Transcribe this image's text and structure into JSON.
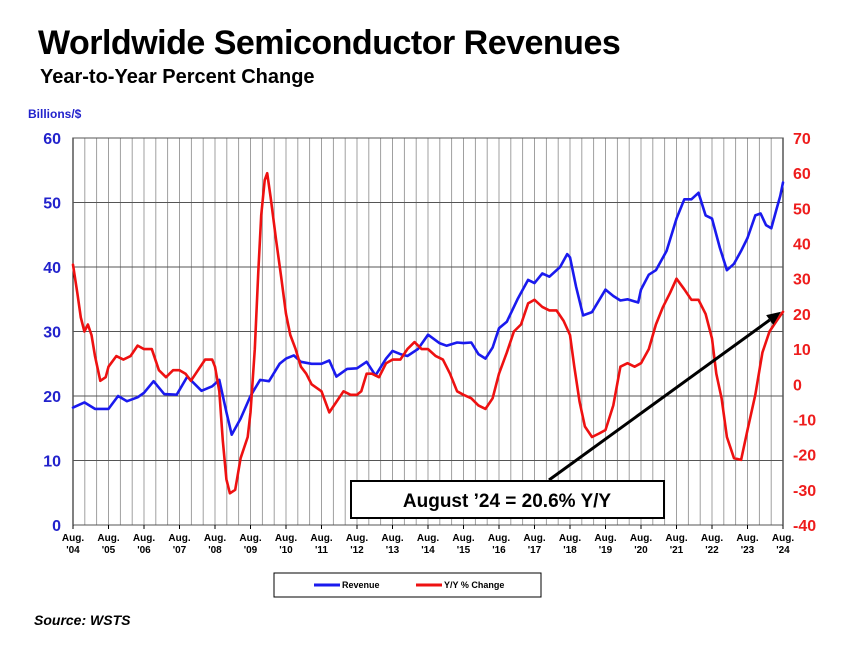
{
  "header": {
    "title": "Worldwide Semiconductor Revenues",
    "subtitle": "Year-to-Year Percent Change"
  },
  "footer": {
    "source": "Source: WSTS"
  },
  "colors": {
    "revenue": "#1a1aee",
    "yoy": "#ee1111",
    "left_axis": "#2222cc",
    "right_axis": "#ee1c1c"
  },
  "chart_data": {
    "type": "line",
    "title": "Worldwide Semiconductor Revenues",
    "subtitle": "Year-to-Year Percent Change",
    "ylabel": "Billions/$",
    "ylim": [
      0,
      60
    ],
    "y2lim": [
      -40,
      70
    ],
    "yticks": [
      0,
      10,
      20,
      30,
      40,
      50,
      60
    ],
    "y2ticks": [
      -40,
      -30,
      -20,
      -10,
      0,
      10,
      20,
      30,
      40,
      50,
      60,
      70
    ],
    "grid": true,
    "legend_position": "bottom-center",
    "categories": [
      [
        "Aug.",
        "'04"
      ],
      [
        "Aug.",
        "'05"
      ],
      [
        "Aug.",
        "'06"
      ],
      [
        "Aug.",
        "'07"
      ],
      [
        "Aug.",
        "'08"
      ],
      [
        "Aug.",
        "'09"
      ],
      [
        "Aug.",
        "'10"
      ],
      [
        "Aug.",
        "'11"
      ],
      [
        "Aug.",
        "'12"
      ],
      [
        "Aug.",
        "'13"
      ],
      [
        "Aug.",
        "'14"
      ],
      [
        "Aug.",
        "'15"
      ],
      [
        "Aug.",
        "'16"
      ],
      [
        "Aug.",
        "'17"
      ],
      [
        "Aug.",
        "'18"
      ],
      [
        "Aug.",
        "'19"
      ],
      [
        "Aug.",
        "'20"
      ],
      [
        "Aug.",
        "'21"
      ],
      [
        "Aug.",
        "'22"
      ],
      [
        "Aug.",
        "'23"
      ],
      [
        "Aug.",
        "'24"
      ]
    ],
    "series": [
      {
        "name": "Revenue",
        "axis": "left",
        "points": [
          [
            2004.58,
            18.2
          ],
          [
            2004.9,
            19.0
          ],
          [
            2005.2,
            18.0
          ],
          [
            2005.58,
            18.0
          ],
          [
            2005.85,
            20.0
          ],
          [
            2006.1,
            19.2
          ],
          [
            2006.4,
            19.8
          ],
          [
            2006.58,
            20.5
          ],
          [
            2006.85,
            22.3
          ],
          [
            2007.15,
            20.3
          ],
          [
            2007.5,
            20.2
          ],
          [
            2007.8,
            23.0
          ],
          [
            2008.2,
            20.8
          ],
          [
            2008.5,
            21.5
          ],
          [
            2008.7,
            22.5
          ],
          [
            2008.9,
            17.5
          ],
          [
            2009.05,
            14.0
          ],
          [
            2009.3,
            16.5
          ],
          [
            2009.58,
            20.0
          ],
          [
            2009.85,
            22.5
          ],
          [
            2010.1,
            22.3
          ],
          [
            2010.4,
            25.0
          ],
          [
            2010.58,
            25.8
          ],
          [
            2010.8,
            26.3
          ],
          [
            2011.0,
            25.3
          ],
          [
            2011.3,
            25.0
          ],
          [
            2011.58,
            25.0
          ],
          [
            2011.8,
            25.5
          ],
          [
            2012.0,
            23.0
          ],
          [
            2012.3,
            24.2
          ],
          [
            2012.58,
            24.3
          ],
          [
            2012.85,
            25.3
          ],
          [
            2013.1,
            23.2
          ],
          [
            2013.4,
            25.8
          ],
          [
            2013.58,
            27.0
          ],
          [
            2013.8,
            26.5
          ],
          [
            2014.0,
            26.2
          ],
          [
            2014.3,
            27.3
          ],
          [
            2014.58,
            29.5
          ],
          [
            2014.9,
            28.2
          ],
          [
            2015.1,
            27.8
          ],
          [
            2015.4,
            28.3
          ],
          [
            2015.58,
            28.2
          ],
          [
            2015.8,
            28.3
          ],
          [
            2016.0,
            26.5
          ],
          [
            2016.2,
            25.8
          ],
          [
            2016.4,
            27.5
          ],
          [
            2016.58,
            30.5
          ],
          [
            2016.8,
            31.5
          ],
          [
            2017.1,
            35.0
          ],
          [
            2017.4,
            38.0
          ],
          [
            2017.58,
            37.5
          ],
          [
            2017.8,
            39.0
          ],
          [
            2018.0,
            38.5
          ],
          [
            2018.3,
            40.0
          ],
          [
            2018.5,
            42.0
          ],
          [
            2018.58,
            41.5
          ],
          [
            2018.75,
            37.0
          ],
          [
            2018.95,
            32.5
          ],
          [
            2019.2,
            33.0
          ],
          [
            2019.58,
            36.5
          ],
          [
            2019.8,
            35.5
          ],
          [
            2020.0,
            34.8
          ],
          [
            2020.2,
            35.0
          ],
          [
            2020.5,
            34.5
          ],
          [
            2020.58,
            36.5
          ],
          [
            2020.8,
            38.8
          ],
          [
            2021.0,
            39.5
          ],
          [
            2021.3,
            42.5
          ],
          [
            2021.58,
            47.5
          ],
          [
            2021.8,
            50.5
          ],
          [
            2022.0,
            50.5
          ],
          [
            2022.2,
            51.5
          ],
          [
            2022.4,
            48.0
          ],
          [
            2022.58,
            47.5
          ],
          [
            2022.8,
            43.0
          ],
          [
            2023.0,
            39.5
          ],
          [
            2023.2,
            40.5
          ],
          [
            2023.4,
            42.5
          ],
          [
            2023.58,
            44.5
          ],
          [
            2023.8,
            48.0
          ],
          [
            2023.95,
            48.3
          ],
          [
            2024.1,
            46.5
          ],
          [
            2024.25,
            46.0
          ],
          [
            2024.4,
            49.0
          ],
          [
            2024.5,
            51.0
          ],
          [
            2024.58,
            53.1
          ]
        ]
      },
      {
        "name": "Y/Y % Change",
        "axis": "right",
        "points": [
          [
            2004.58,
            34.0
          ],
          [
            2004.7,
            26.0
          ],
          [
            2004.8,
            19.0
          ],
          [
            2004.9,
            15.0
          ],
          [
            2005.0,
            17.0
          ],
          [
            2005.1,
            14.0
          ],
          [
            2005.2,
            8.0
          ],
          [
            2005.35,
            1.0
          ],
          [
            2005.5,
            2.0
          ],
          [
            2005.58,
            5.0
          ],
          [
            2005.8,
            8.0
          ],
          [
            2006.0,
            7.0
          ],
          [
            2006.2,
            8.0
          ],
          [
            2006.4,
            11.0
          ],
          [
            2006.58,
            10.0
          ],
          [
            2006.8,
            10.0
          ],
          [
            2007.0,
            4.0
          ],
          [
            2007.2,
            2.0
          ],
          [
            2007.4,
            4.0
          ],
          [
            2007.58,
            4.0
          ],
          [
            2007.75,
            3.0
          ],
          [
            2007.9,
            1.0
          ],
          [
            2008.1,
            4.0
          ],
          [
            2008.3,
            7.0
          ],
          [
            2008.5,
            7.0
          ],
          [
            2008.58,
            5.0
          ],
          [
            2008.7,
            -2.0
          ],
          [
            2008.8,
            -16.0
          ],
          [
            2008.9,
            -27.0
          ],
          [
            2009.0,
            -31.0
          ],
          [
            2009.15,
            -30.0
          ],
          [
            2009.3,
            -21.0
          ],
          [
            2009.5,
            -15.0
          ],
          [
            2009.58,
            -8.0
          ],
          [
            2009.7,
            10.0
          ],
          [
            2009.8,
            32.0
          ],
          [
            2009.88,
            48.0
          ],
          [
            2009.98,
            58.0
          ],
          [
            2010.05,
            60.0
          ],
          [
            2010.15,
            53.0
          ],
          [
            2010.3,
            41.0
          ],
          [
            2010.45,
            30.0
          ],
          [
            2010.58,
            20.0
          ],
          [
            2010.7,
            14.0
          ],
          [
            2010.85,
            10.0
          ],
          [
            2011.0,
            5.0
          ],
          [
            2011.15,
            3.0
          ],
          [
            2011.3,
            0.0
          ],
          [
            2011.58,
            -2.0
          ],
          [
            2011.8,
            -8.0
          ],
          [
            2012.0,
            -5.0
          ],
          [
            2012.2,
            -2.0
          ],
          [
            2012.4,
            -3.0
          ],
          [
            2012.58,
            -3.0
          ],
          [
            2012.7,
            -2.0
          ],
          [
            2012.85,
            3.0
          ],
          [
            2013.0,
            3.0
          ],
          [
            2013.2,
            2.0
          ],
          [
            2013.4,
            6.0
          ],
          [
            2013.58,
            7.0
          ],
          [
            2013.8,
            7.0
          ],
          [
            2014.0,
            10.0
          ],
          [
            2014.2,
            12.0
          ],
          [
            2014.4,
            10.0
          ],
          [
            2014.58,
            10.0
          ],
          [
            2014.8,
            8.0
          ],
          [
            2015.0,
            7.0
          ],
          [
            2015.2,
            3.0
          ],
          [
            2015.4,
            -2.0
          ],
          [
            2015.58,
            -3.0
          ],
          [
            2015.8,
            -4.0
          ],
          [
            2016.0,
            -6.0
          ],
          [
            2016.2,
            -7.0
          ],
          [
            2016.4,
            -4.0
          ],
          [
            2016.58,
            3.0
          ],
          [
            2016.8,
            9.0
          ],
          [
            2017.0,
            15.0
          ],
          [
            2017.2,
            17.0
          ],
          [
            2017.4,
            23.0
          ],
          [
            2017.58,
            24.0
          ],
          [
            2017.8,
            22.0
          ],
          [
            2018.0,
            21.0
          ],
          [
            2018.2,
            21.0
          ],
          [
            2018.4,
            18.0
          ],
          [
            2018.58,
            14.0
          ],
          [
            2018.7,
            5.0
          ],
          [
            2018.85,
            -5.0
          ],
          [
            2019.0,
            -12.0
          ],
          [
            2019.2,
            -15.0
          ],
          [
            2019.4,
            -14.0
          ],
          [
            2019.58,
            -13.0
          ],
          [
            2019.8,
            -6.0
          ],
          [
            2020.0,
            5.0
          ],
          [
            2020.2,
            6.0
          ],
          [
            2020.4,
            5.0
          ],
          [
            2020.58,
            6.0
          ],
          [
            2020.8,
            10.0
          ],
          [
            2021.0,
            17.0
          ],
          [
            2021.2,
            22.0
          ],
          [
            2021.4,
            26.0
          ],
          [
            2021.58,
            30.0
          ],
          [
            2021.8,
            27.0
          ],
          [
            2022.0,
            24.0
          ],
          [
            2022.2,
            24.0
          ],
          [
            2022.4,
            20.0
          ],
          [
            2022.58,
            13.0
          ],
          [
            2022.7,
            3.0
          ],
          [
            2022.85,
            -4.0
          ],
          [
            2023.0,
            -15.0
          ],
          [
            2023.2,
            -21.0
          ],
          [
            2023.4,
            -21.5
          ],
          [
            2023.58,
            -13.0
          ],
          [
            2023.8,
            -3.0
          ],
          [
            2024.0,
            9.0
          ],
          [
            2024.2,
            15.0
          ],
          [
            2024.4,
            18.0
          ],
          [
            2024.58,
            20.6
          ]
        ]
      }
    ],
    "annotations": [
      {
        "text": "August ’24 = 20.6% Y/Y",
        "arrow_to": [
          2024.58,
          20.6
        ],
        "arrow_axis": "right"
      }
    ]
  }
}
